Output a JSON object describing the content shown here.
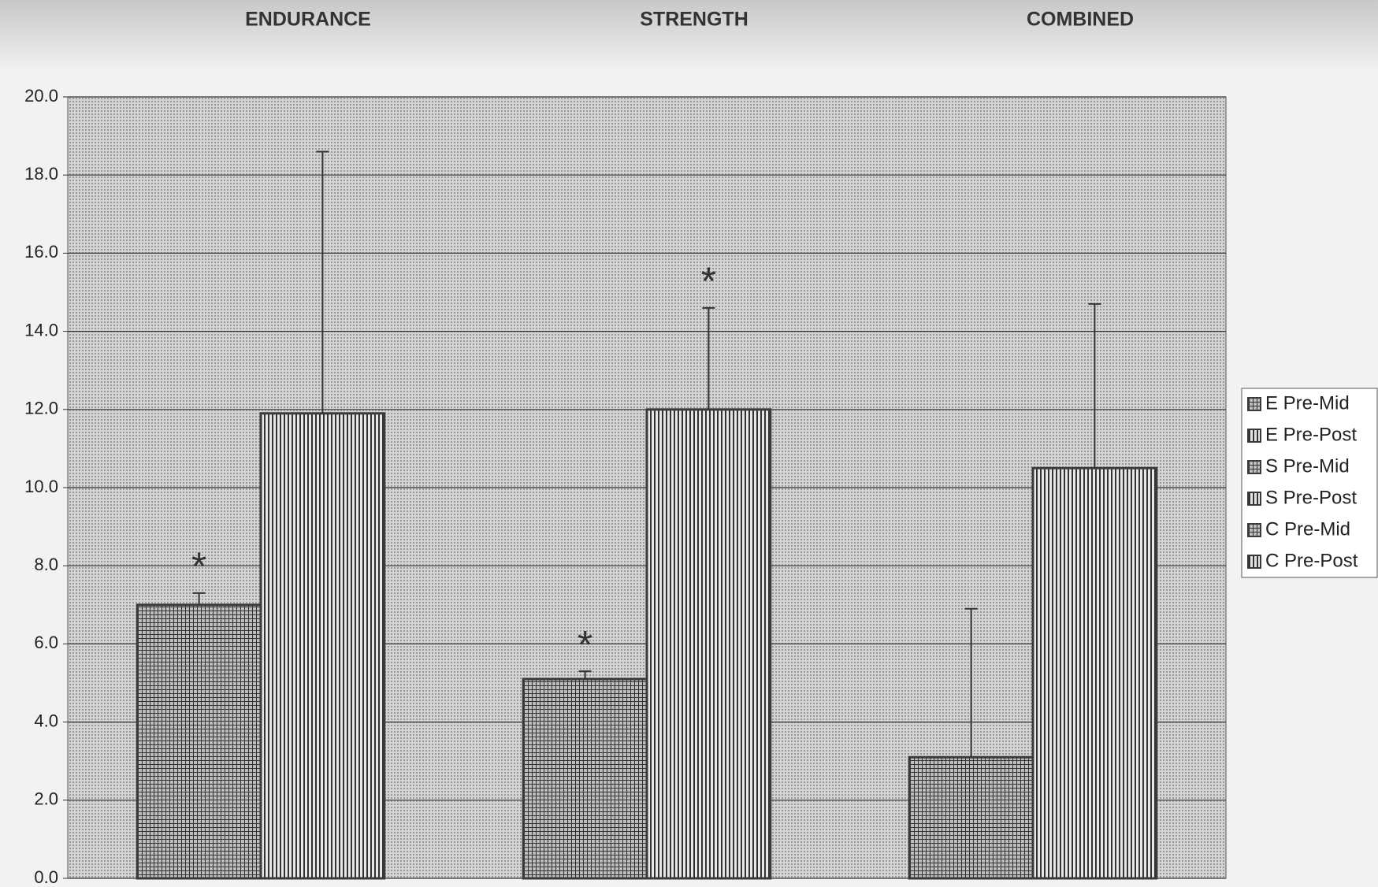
{
  "chart_data": {
    "type": "bar",
    "categories": [
      "ENDURANCE",
      "STRENGTH",
      "COMBINED"
    ],
    "series": [
      {
        "name": "E Pre-Mid",
        "color": "#3a3a3a",
        "pattern": "grid",
        "values": [
          7.0,
          null,
          null
        ],
        "errors": [
          0.3,
          null,
          null
        ]
      },
      {
        "name": "E Pre-Post",
        "color": "#3a3a3a",
        "pattern": "vertical",
        "values": [
          11.9,
          null,
          null
        ],
        "errors": [
          6.7,
          null,
          null
        ]
      },
      {
        "name": "S Pre-Mid",
        "color": "#3a3a3a",
        "pattern": "grid",
        "values": [
          null,
          5.1,
          null
        ],
        "errors": [
          null,
          0.2,
          null
        ]
      },
      {
        "name": "S Pre-Post",
        "color": "#3a3a3a",
        "pattern": "vertical",
        "values": [
          null,
          12.0,
          null
        ],
        "errors": [
          null,
          2.6,
          null
        ]
      },
      {
        "name": "C Pre-Mid",
        "color": "#3a3a3a",
        "pattern": "grid",
        "values": [
          null,
          null,
          3.1
        ],
        "errors": [
          null,
          null,
          3.8
        ]
      },
      {
        "name": "C Pre-Post",
        "color": "#3a3a3a",
        "pattern": "vertical",
        "values": [
          null,
          null,
          10.5
        ],
        "errors": [
          null,
          null,
          4.2
        ]
      }
    ],
    "annotations": [
      "*",
      "*",
      "*"
    ],
    "ylim": [
      0,
      20
    ],
    "yticks": [
      {
        "value": 0,
        "label": "0.0"
      },
      {
        "value": 2,
        "label": "2.0"
      },
      {
        "value": 4,
        "label": "4.0"
      },
      {
        "value": 6,
        "label": "6.0"
      },
      {
        "value": 8,
        "label": "8.0"
      },
      {
        "value": 10,
        "label": "10.0"
      },
      {
        "value": 12,
        "label": "12.0"
      },
      {
        "value": 14,
        "label": "14.0"
      },
      {
        "value": 16,
        "label": "16.0"
      },
      {
        "value": 18,
        "label": "18.0"
      },
      {
        "value": 20,
        "label": "20.0"
      }
    ],
    "grid": true,
    "legend": "right"
  }
}
